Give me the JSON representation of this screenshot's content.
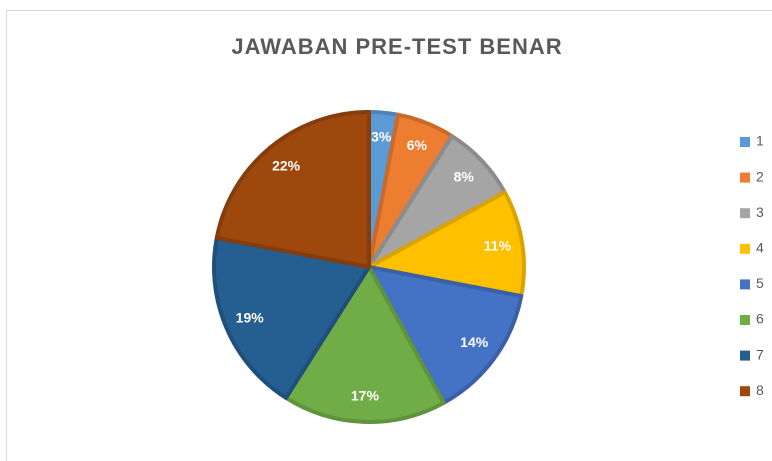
{
  "chart_data": {
    "type": "pie",
    "title": "JAWABAN PRE-TEST BENAR",
    "categories": [
      "1",
      "2",
      "3",
      "4",
      "5",
      "6",
      "7",
      "8"
    ],
    "values": [
      3,
      6,
      8,
      11,
      14,
      17,
      19,
      22
    ],
    "value_labels": [
      "3%",
      "6%",
      "8%",
      "11%",
      "14%",
      "17%",
      "19%",
      "22%"
    ],
    "colors": [
      "#5b9bd5",
      "#ed7d31",
      "#a5a5a5",
      "#ffc000",
      "#4472c4",
      "#70ad47",
      "#255e91",
      "#9e480e"
    ],
    "legend": "right"
  }
}
